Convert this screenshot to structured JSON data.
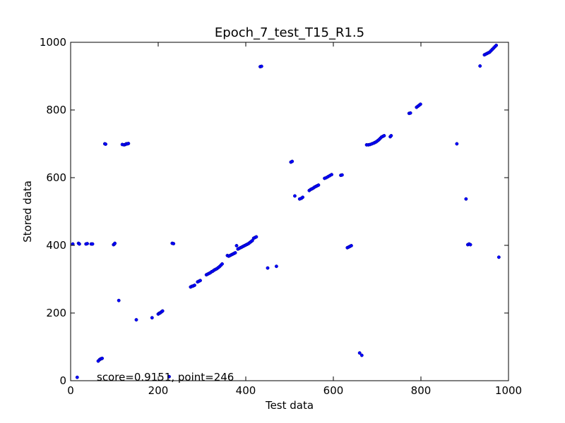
{
  "chart_data": {
    "type": "scatter",
    "title": "Epoch_7_test_T15_R1.5",
    "xlabel": "Test data",
    "ylabel": "Stored data",
    "xlim": [
      0,
      1000
    ],
    "ylim": [
      0,
      1000
    ],
    "xticks": [
      "0",
      "200",
      "400",
      "600",
      "800",
      "1000"
    ],
    "yticks": [
      "0",
      "200",
      "400",
      "600",
      "800",
      "1000"
    ],
    "grid": false,
    "marker_color": "#0000ff",
    "annotation": "score=0.9151, point=246",
    "points": [
      [
        15,
        10
      ],
      [
        5,
        404
      ],
      [
        18,
        406
      ],
      [
        20,
        404
      ],
      [
        35,
        404
      ],
      [
        38,
        405
      ],
      [
        47,
        404
      ],
      [
        50,
        404
      ],
      [
        63,
        58
      ],
      [
        66,
        62
      ],
      [
        68,
        64
      ],
      [
        70,
        65
      ],
      [
        72,
        66
      ],
      [
        78,
        700
      ],
      [
        80,
        699
      ],
      [
        98,
        402
      ],
      [
        100,
        404
      ],
      [
        101,
        406
      ],
      [
        110,
        237
      ],
      [
        118,
        698
      ],
      [
        122,
        697
      ],
      [
        125,
        698
      ],
      [
        127,
        700
      ],
      [
        130,
        700
      ],
      [
        132,
        701
      ],
      [
        150,
        180
      ],
      [
        186,
        186
      ],
      [
        200,
        197
      ],
      [
        202,
        199
      ],
      [
        204,
        200
      ],
      [
        206,
        202
      ],
      [
        208,
        204
      ],
      [
        210,
        206
      ],
      [
        225,
        12
      ],
      [
        232,
        406
      ],
      [
        235,
        405
      ],
      [
        274,
        277
      ],
      [
        277,
        279
      ],
      [
        280,
        280
      ],
      [
        283,
        282
      ],
      [
        290,
        292
      ],
      [
        293,
        294
      ],
      [
        296,
        296
      ],
      [
        310,
        313
      ],
      [
        313,
        315
      ],
      [
        316,
        317
      ],
      [
        319,
        319
      ],
      [
        322,
        322
      ],
      [
        325,
        324
      ],
      [
        328,
        327
      ],
      [
        331,
        329
      ],
      [
        334,
        331
      ],
      [
        337,
        334
      ],
      [
        340,
        337
      ],
      [
        343,
        341
      ],
      [
        346,
        345
      ],
      [
        358,
        370
      ],
      [
        361,
        368
      ],
      [
        364,
        370
      ],
      [
        367,
        372
      ],
      [
        370,
        374
      ],
      [
        373,
        376
      ],
      [
        376,
        378
      ],
      [
        379,
        399
      ],
      [
        382,
        389
      ],
      [
        385,
        391
      ],
      [
        388,
        393
      ],
      [
        391,
        395
      ],
      [
        394,
        397
      ],
      [
        397,
        399
      ],
      [
        400,
        401
      ],
      [
        403,
        403
      ],
      [
        406,
        405
      ],
      [
        409,
        408
      ],
      [
        412,
        411
      ],
      [
        415,
        414
      ],
      [
        418,
        421
      ],
      [
        421,
        423
      ],
      [
        424,
        425
      ],
      [
        433,
        928
      ],
      [
        436,
        929
      ],
      [
        450,
        333
      ],
      [
        470,
        338
      ],
      [
        503,
        646
      ],
      [
        506,
        648
      ],
      [
        512,
        546
      ],
      [
        523,
        537
      ],
      [
        527,
        539
      ],
      [
        530,
        542
      ],
      [
        545,
        562
      ],
      [
        548,
        565
      ],
      [
        551,
        567
      ],
      [
        554,
        569
      ],
      [
        557,
        572
      ],
      [
        560,
        574
      ],
      [
        563,
        576
      ],
      [
        566,
        578
      ],
      [
        580,
        598
      ],
      [
        584,
        600
      ],
      [
        588,
        603
      ],
      [
        592,
        606
      ],
      [
        596,
        609
      ],
      [
        617,
        607
      ],
      [
        620,
        608
      ],
      [
        632,
        393
      ],
      [
        635,
        395
      ],
      [
        638,
        397
      ],
      [
        641,
        399
      ],
      [
        660,
        82
      ],
      [
        665,
        75
      ],
      [
        676,
        697
      ],
      [
        680,
        697
      ],
      [
        684,
        698
      ],
      [
        688,
        700
      ],
      [
        692,
        702
      ],
      [
        695,
        704
      ],
      [
        698,
        706
      ],
      [
        701,
        709
      ],
      [
        704,
        712
      ],
      [
        707,
        716
      ],
      [
        710,
        720
      ],
      [
        713,
        722
      ],
      [
        716,
        724
      ],
      [
        730,
        721
      ],
      [
        732,
        724
      ],
      [
        773,
        790
      ],
      [
        776,
        791
      ],
      [
        790,
        808
      ],
      [
        793,
        811
      ],
      [
        796,
        814
      ],
      [
        799,
        817
      ],
      [
        882,
        700
      ],
      [
        935,
        930
      ],
      [
        903,
        537
      ],
      [
        907,
        402
      ],
      [
        910,
        404
      ],
      [
        913,
        402
      ],
      [
        945,
        963
      ],
      [
        948,
        965
      ],
      [
        951,
        967
      ],
      [
        954,
        969
      ],
      [
        957,
        971
      ],
      [
        960,
        975
      ],
      [
        963,
        979
      ],
      [
        966,
        983
      ],
      [
        969,
        987
      ],
      [
        972,
        991
      ],
      [
        978,
        365
      ]
    ]
  }
}
